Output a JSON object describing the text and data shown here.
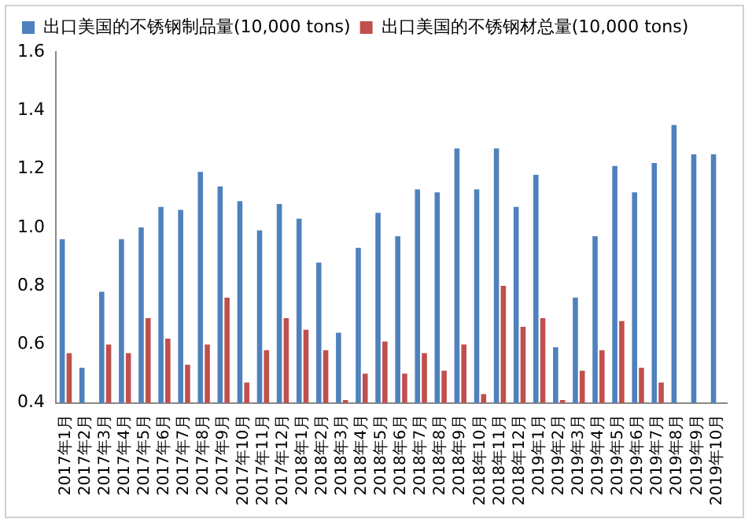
{
  "chart_data": {
    "type": "bar",
    "categories": [
      "2017年1月",
      "2017年2月",
      "2017年3月",
      "2017年4月",
      "2017年5月",
      "2017年6月",
      "2017年7月",
      "2017年8月",
      "2017年9月",
      "2017年10月",
      "2017年11月",
      "2017年12月",
      "2018年1月",
      "2018年2月",
      "2018年3月",
      "2018年4月",
      "2018年5月",
      "2018年6月",
      "2018年7月",
      "2018年8月",
      "2018年9月",
      "2018年10月",
      "2018年11月",
      "2018年12月",
      "2019年1月",
      "2019年2月",
      "2019年3月",
      "2019年4月",
      "2019年5月",
      "2019年6月",
      "2019年7月",
      "2019年8月",
      "2019年9月",
      "2019年10月"
    ],
    "series": [
      {
        "name": "出口美国的不锈钢制品量(10,000 tons)",
        "color": "#4f81bd",
        "values": [
          0.96,
          0.52,
          0.78,
          0.96,
          1.0,
          1.07,
          1.06,
          1.19,
          1.14,
          1.09,
          0.99,
          1.08,
          1.03,
          0.88,
          0.64,
          0.93,
          1.05,
          0.97,
          1.13,
          1.12,
          1.27,
          1.13,
          1.27,
          1.07,
          1.18,
          0.59,
          0.76,
          0.97,
          1.21,
          1.12,
          1.22,
          1.35,
          1.25,
          1.25
        ]
      },
      {
        "name": "出口美国的不锈钢材总量(10,000 tons)",
        "color": "#c0504d",
        "values": [
          0.57,
          null,
          0.6,
          0.57,
          0.69,
          0.62,
          0.53,
          0.6,
          0.76,
          0.47,
          0.58,
          0.69,
          0.65,
          0.58,
          0.41,
          0.5,
          0.61,
          0.5,
          0.57,
          0.51,
          0.6,
          0.43,
          0.8,
          0.66,
          0.69,
          0.41,
          0.51,
          0.58,
          0.68,
          0.52,
          0.47,
          null,
          null,
          null
        ]
      }
    ],
    "ylim": [
      0.4,
      1.6
    ],
    "yticks": [
      {
        "value": 0.4,
        "label": "0.4"
      },
      {
        "value": 0.6,
        "label": "0.6"
      },
      {
        "value": 0.8,
        "label": "0.8"
      },
      {
        "value": 1,
        "label": "1.0"
      },
      {
        "value": 1.2,
        "label": "1.2"
      },
      {
        "value": 1.4,
        "label": "1.4"
      },
      {
        "value": 1.6,
        "label": "1.6"
      }
    ],
    "grid": false,
    "legend": "top left"
  }
}
